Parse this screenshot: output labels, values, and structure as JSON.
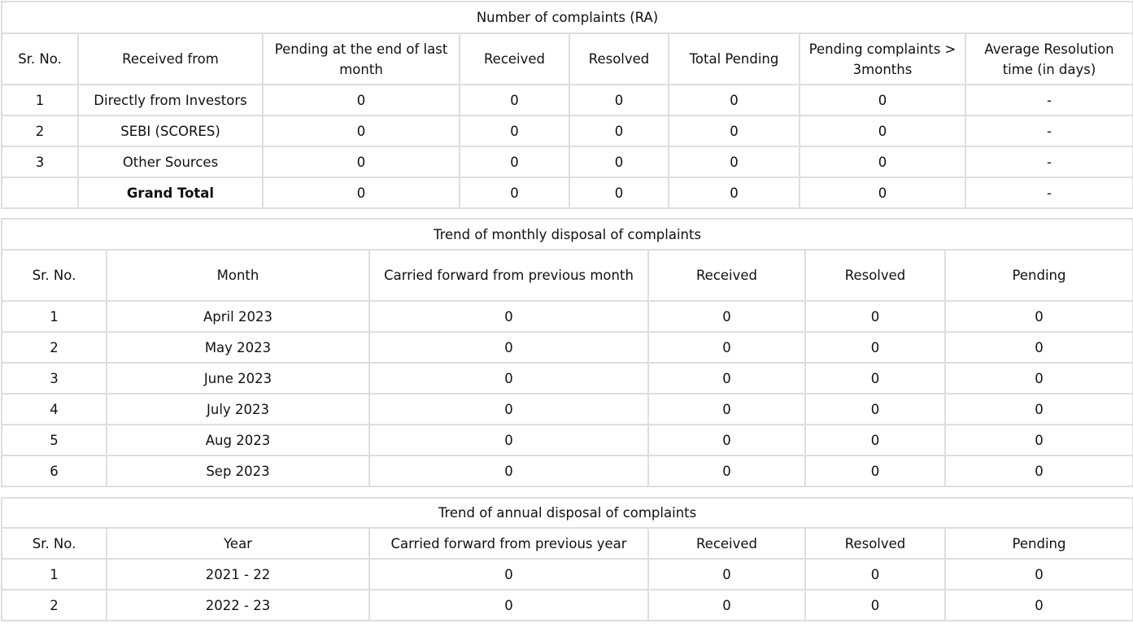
{
  "complaints_table": {
    "title": "Number of complaints (RA)",
    "headers": [
      "Sr. No.",
      "Received from",
      "Pending at the end of last month",
      "Received",
      "Resolved",
      "Total Pending",
      "Pending complaints > 3months",
      "Average Resolution time (in days)"
    ],
    "rows": [
      [
        "1",
        "Directly from Investors",
        "0",
        "0",
        "0",
        "0",
        "0",
        "-"
      ],
      [
        "2",
        "SEBI (SCORES)",
        "0",
        "0",
        "0",
        "0",
        "0",
        "-"
      ],
      [
        "3",
        "Other Sources",
        "0",
        "0",
        "0",
        "0",
        "0",
        "-"
      ]
    ],
    "total_row": [
      "",
      "Grand Total",
      "0",
      "0",
      "0",
      "0",
      "0",
      "-"
    ]
  },
  "monthly_table": {
    "title": "Trend of monthly disposal of complaints",
    "headers": [
      "Sr. No.",
      "Month",
      "Carried forward from previous month",
      "Received",
      "Resolved",
      "Pending"
    ],
    "rows": [
      [
        "1",
        "April 2023",
        "0",
        "0",
        "0",
        "0"
      ],
      [
        "2",
        "May 2023",
        "0",
        "0",
        "0",
        "0"
      ],
      [
        "3",
        "June 2023",
        "0",
        "0",
        "0",
        "0"
      ],
      [
        "4",
        "July 2023",
        "0",
        "0",
        "0",
        "0"
      ],
      [
        "5",
        "Aug 2023",
        "0",
        "0",
        "0",
        "0"
      ],
      [
        "6",
        "Sep 2023",
        "0",
        "0",
        "0",
        "0"
      ]
    ]
  },
  "annual_table": {
    "title": "Trend of annual disposal of complaints",
    "headers": [
      "Sr. No.",
      "Year",
      "Carried forward from previous year",
      "Received",
      "Resolved",
      "Pending"
    ],
    "rows": [
      [
        "1",
        "2021 - 22",
        "0",
        "0",
        "0",
        "0"
      ],
      [
        "2",
        "2022 - 23",
        "0",
        "0",
        "0",
        "0"
      ]
    ]
  }
}
